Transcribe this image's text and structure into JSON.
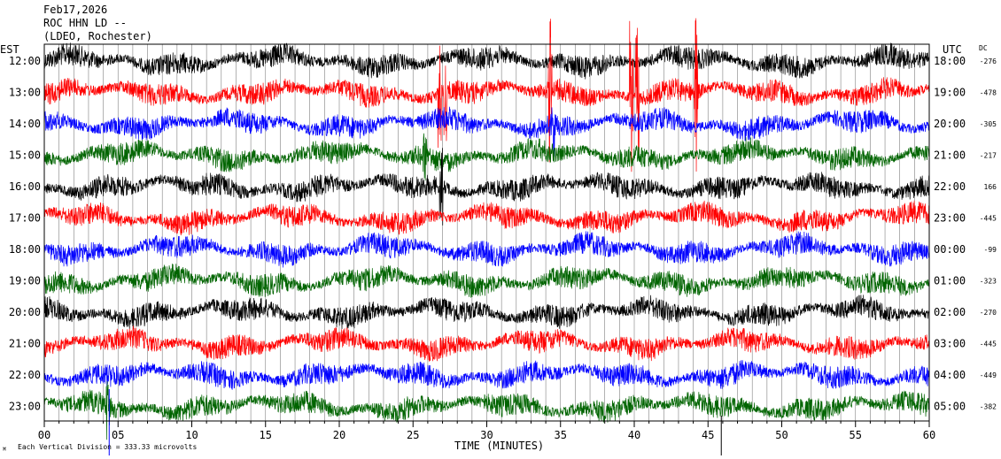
{
  "header": {
    "date": "Feb17,2026",
    "station": "ROC HHN LD --",
    "network": "(LDEO, Rochester)"
  },
  "chart_data": {
    "type": "line",
    "title": "",
    "xlabel": "TIME (MINUTES)",
    "left_axis_label": "EST",
    "right_axis_label": "UTC",
    "dc_label": "DC",
    "xlim": [
      0,
      60
    ],
    "x_ticks": [
      "00",
      "05",
      "10",
      "15",
      "20",
      "25",
      "30",
      "35",
      "40",
      "45",
      "50",
      "55",
      "60"
    ],
    "footer_note": "Each Vertical Division =  333.33 microvolts",
    "traces": [
      {
        "est": "12:00",
        "utc": "18:00",
        "dc": "-276",
        "color": "#000000"
      },
      {
        "est": "13:00",
        "utc": "19:00",
        "dc": "-478",
        "color": "#ff0000"
      },
      {
        "est": "14:00",
        "utc": "20:00",
        "dc": "-305",
        "color": "#0000ff"
      },
      {
        "est": "15:00",
        "utc": "21:00",
        "dc": "-217",
        "color": "#006400"
      },
      {
        "est": "16:00",
        "utc": "22:00",
        "dc": "166",
        "color": "#000000"
      },
      {
        "est": "17:00",
        "utc": "23:00",
        "dc": "-445",
        "color": "#ff0000"
      },
      {
        "est": "18:00",
        "utc": "00:00",
        "dc": "-99",
        "color": "#0000ff"
      },
      {
        "est": "19:00",
        "utc": "01:00",
        "dc": "-323",
        "color": "#006400"
      },
      {
        "est": "20:00",
        "utc": "02:00",
        "dc": "-270",
        "color": "#000000"
      },
      {
        "est": "21:00",
        "utc": "03:00",
        "dc": "-445",
        "color": "#ff0000"
      },
      {
        "est": "22:00",
        "utc": "04:00",
        "dc": "-449",
        "color": "#0000ff"
      },
      {
        "est": "23:00",
        "utc": "05:00",
        "dc": "-382",
        "color": "#006400"
      }
    ]
  }
}
